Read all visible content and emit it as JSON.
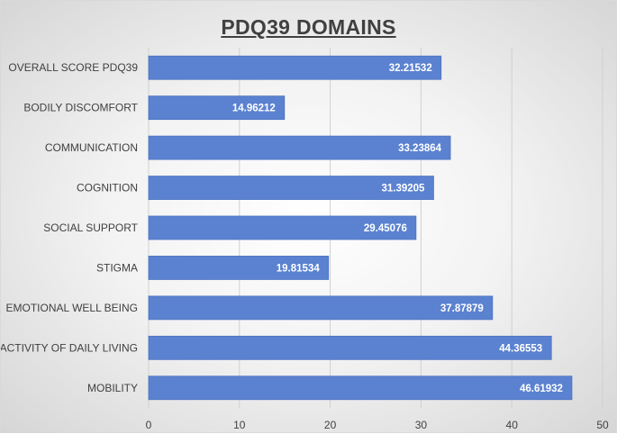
{
  "chart_data": {
    "type": "bar",
    "orientation": "horizontal",
    "title": "PDQ39 DOMAINS",
    "xlabel": "",
    "ylabel": "",
    "categories": [
      "OVERALL SCORE PDQ39",
      "BODILY DISCOMFORT",
      "COMMUNICATION",
      "COGNITION",
      "SOCIAL SUPPORT",
      "STIGMA",
      "EMOTIONAL WELL BEING",
      "ACTIVITY OF DAILY LIVING",
      "MOBILITY"
    ],
    "values": [
      32.21532,
      14.96212,
      33.23864,
      31.39205,
      29.45076,
      19.81534,
      37.87879,
      44.36553,
      46.61932
    ],
    "value_labels": [
      "32.21532",
      "14.96212",
      "33.23864",
      "31.39205",
      "29.45076",
      "19.81534",
      "37.87879",
      "44.36553",
      "46.61932"
    ],
    "xlim": [
      0,
      50
    ],
    "x_ticks": [
      0,
      10,
      20,
      30,
      40,
      50
    ],
    "x_tick_labels": [
      "0",
      "10",
      "20",
      "30",
      "40",
      "50"
    ],
    "grid": "vertical",
    "legend": "none",
    "bar_color": "#5b82d0",
    "bar_border_color": "#4a72c0",
    "data_label_color": "#ffffff",
    "grid_color": "#d0d0d0"
  }
}
